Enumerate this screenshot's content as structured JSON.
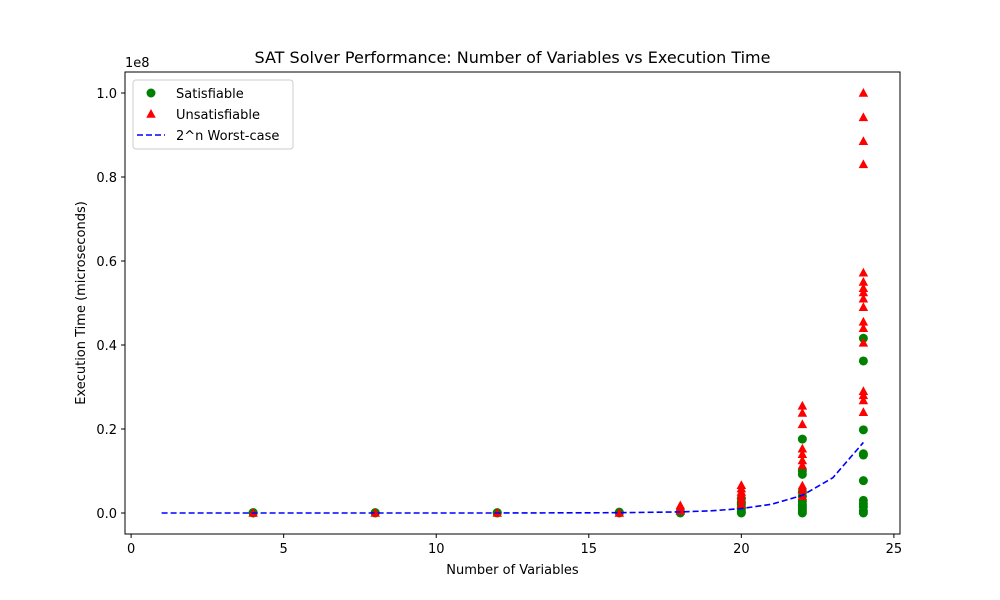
{
  "chart_data": {
    "type": "scatter",
    "title": "SAT Solver Performance: Number of Variables vs Execution Time",
    "xlabel": "Number of Variables",
    "ylabel": "Execution Time (microseconds)",
    "y_offset_label": "1e8",
    "xlim": [
      -0.2,
      25.2
    ],
    "ylim": [
      -0.05,
      1.05
    ],
    "y_scale_factor": 100000000,
    "xticks": [
      0,
      5,
      10,
      15,
      20,
      25
    ],
    "xtick_labels": [
      "0",
      "5",
      "10",
      "15",
      "20",
      "25"
    ],
    "yticks": [
      0.0,
      0.2,
      0.4,
      0.6,
      0.8,
      1.0
    ],
    "ytick_labels": [
      "0.0",
      "0.2",
      "0.4",
      "0.6",
      "0.8",
      "1.0"
    ],
    "grid": false,
    "legend_position": "top-left",
    "colors": {
      "satisfiable": "#008000",
      "unsatisfiable": "#ff0000",
      "worst_case": "#0000ff"
    },
    "series": [
      {
        "name": "Satisfiable",
        "marker": "circle",
        "color": "#008000",
        "points": [
          [
            4,
            0.0
          ],
          [
            4,
            0.001
          ],
          [
            8,
            0.0
          ],
          [
            8,
            0.001
          ],
          [
            12,
            0.0
          ],
          [
            12,
            0.001
          ],
          [
            16,
            0.0
          ],
          [
            16,
            0.002
          ],
          [
            18,
            0.0
          ],
          [
            18,
            0.002
          ],
          [
            18,
            0.004
          ],
          [
            20,
            0.0
          ],
          [
            20,
            0.003
          ],
          [
            20,
            0.008
          ],
          [
            20,
            0.014
          ],
          [
            20,
            0.02
          ],
          [
            20,
            0.026
          ],
          [
            20,
            0.035
          ],
          [
            22,
            0.0
          ],
          [
            22,
            0.005
          ],
          [
            22,
            0.01
          ],
          [
            22,
            0.015
          ],
          [
            22,
            0.02
          ],
          [
            22,
            0.028
          ],
          [
            22,
            0.04
          ],
          [
            22,
            0.05
          ],
          [
            22,
            0.092
          ],
          [
            22,
            0.1
          ],
          [
            22,
            0.176
          ],
          [
            24,
            0.0
          ],
          [
            24,
            0.005
          ],
          [
            24,
            0.015
          ],
          [
            24,
            0.022
          ],
          [
            24,
            0.03
          ],
          [
            24,
            0.077
          ],
          [
            24,
            0.138
          ],
          [
            24,
            0.141
          ],
          [
            24,
            0.198
          ],
          [
            24,
            0.362
          ],
          [
            24,
            0.416
          ]
        ]
      },
      {
        "name": "Unsatisfiable",
        "marker": "triangle",
        "color": "#ff0000",
        "points": [
          [
            4,
            0.0
          ],
          [
            8,
            0.0
          ],
          [
            12,
            0.0
          ],
          [
            16,
            0.0
          ],
          [
            18,
            0.005
          ],
          [
            18,
            0.012
          ],
          [
            18,
            0.018
          ],
          [
            20,
            0.02
          ],
          [
            20,
            0.032
          ],
          [
            20,
            0.042
          ],
          [
            20,
            0.05
          ],
          [
            20,
            0.058
          ],
          [
            20,
            0.066
          ],
          [
            22,
            0.04
          ],
          [
            22,
            0.055
          ],
          [
            22,
            0.065
          ],
          [
            22,
            0.113
          ],
          [
            22,
            0.125
          ],
          [
            22,
            0.14
          ],
          [
            22,
            0.153
          ],
          [
            22,
            0.211
          ],
          [
            22,
            0.238
          ],
          [
            22,
            0.255
          ],
          [
            24,
            0.24
          ],
          [
            24,
            0.268
          ],
          [
            24,
            0.28
          ],
          [
            24,
            0.29
          ],
          [
            24,
            0.405
          ],
          [
            24,
            0.44
          ],
          [
            24,
            0.455
          ],
          [
            24,
            0.49
          ],
          [
            24,
            0.51
          ],
          [
            24,
            0.525
          ],
          [
            24,
            0.535
          ],
          [
            24,
            0.55
          ],
          [
            24,
            0.572
          ],
          [
            24,
            0.83
          ],
          [
            24,
            0.885
          ],
          [
            24,
            0.942
          ],
          [
            24,
            1.0
          ]
        ]
      },
      {
        "name": "2^n Worst-case",
        "marker": "dashed-line",
        "color": "#0000ff",
        "x": [
          1,
          4,
          8,
          12,
          16,
          18,
          19,
          20,
          21,
          22,
          23,
          24
        ],
        "y": [
          0.0,
          0.0,
          0.0,
          0.0,
          0.0007,
          0.0026,
          0.0052,
          0.0105,
          0.021,
          0.042,
          0.084,
          0.168
        ]
      }
    ]
  }
}
